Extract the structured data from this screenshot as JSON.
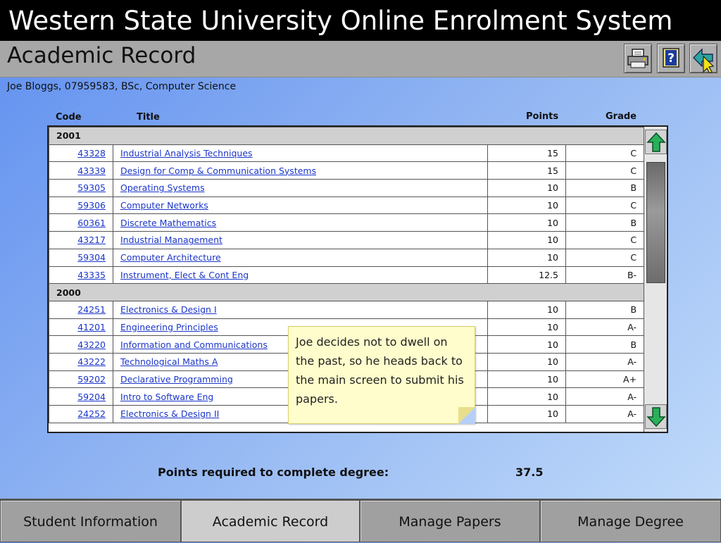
{
  "window": {
    "title": "Western State University Online Enrolment System",
    "page_title": "Academic Record"
  },
  "toolbar": {
    "print_icon": "printer-icon",
    "help_icon": "help-icon",
    "back_icon": "back-arrow-icon"
  },
  "student": {
    "summary": "Joe Bloggs, 07959583, BSc, Computer Science"
  },
  "table": {
    "headers": {
      "code": "Code",
      "title": "Title",
      "points": "Points",
      "grade": "Grade"
    },
    "groups": [
      {
        "year": "2001",
        "rows": [
          {
            "code": "43328",
            "title": "Industrial Analysis Techniques",
            "points": "15",
            "grade": "C"
          },
          {
            "code": "43339",
            "title": "Design for Comp & Communication Systems",
            "points": "15",
            "grade": "C"
          },
          {
            "code": "59305",
            "title": "Operating Systems",
            "points": "10",
            "grade": "B"
          },
          {
            "code": "59306",
            "title": "Computer Networks",
            "points": "10",
            "grade": "C"
          },
          {
            "code": "60361",
            "title": "Discrete Mathematics",
            "points": "10",
            "grade": "B"
          },
          {
            "code": "43217",
            "title": "Industrial Management",
            "points": "10",
            "grade": "C"
          },
          {
            "code": "59304",
            "title": "Computer Architecture",
            "points": "10",
            "grade": "C"
          },
          {
            "code": "43335",
            "title": "Instrument, Elect & Cont Eng",
            "points": "12.5",
            "grade": "B-"
          }
        ]
      },
      {
        "year": "2000",
        "rows": [
          {
            "code": "24251",
            "title": "Electronics & Design I",
            "points": "10",
            "grade": "B"
          },
          {
            "code": "41201",
            "title": "Engineering Principles",
            "points": "10",
            "grade": "A-"
          },
          {
            "code": "43220",
            "title": "Information and Communications",
            "points": "10",
            "grade": "B"
          },
          {
            "code": "43222",
            "title": "Technological Maths A",
            "points": "10",
            "grade": "A-"
          },
          {
            "code": "59202",
            "title": "Declarative Programming",
            "points": "10",
            "grade": "A+"
          },
          {
            "code": "59204",
            "title": "Intro to Software Eng",
            "points": "10",
            "grade": "A-"
          },
          {
            "code": "24252",
            "title": "Electronics & Design II",
            "points": "10",
            "grade": "A-"
          }
        ]
      }
    ]
  },
  "note": {
    "text": "Joe decides not to dwell on the past, so he heads back to the main screen to submit his papers."
  },
  "summary": {
    "points_label": "Points required to complete degree:",
    "points_value": "37.5"
  },
  "tabs": [
    {
      "label": "Student Information",
      "active": false
    },
    {
      "label": "Academic Record",
      "active": true
    },
    {
      "label": "Manage Papers",
      "active": false
    },
    {
      "label": "Manage Degree",
      "active": false
    }
  ],
  "colors": {
    "link": "#1a35c9",
    "title_bar": "#000000",
    "sub_bar": "#a7a7a7",
    "year_row": "#d0d0d0",
    "note_bg": "#fffdcc",
    "scroll_arrow": "#2bb05a"
  }
}
